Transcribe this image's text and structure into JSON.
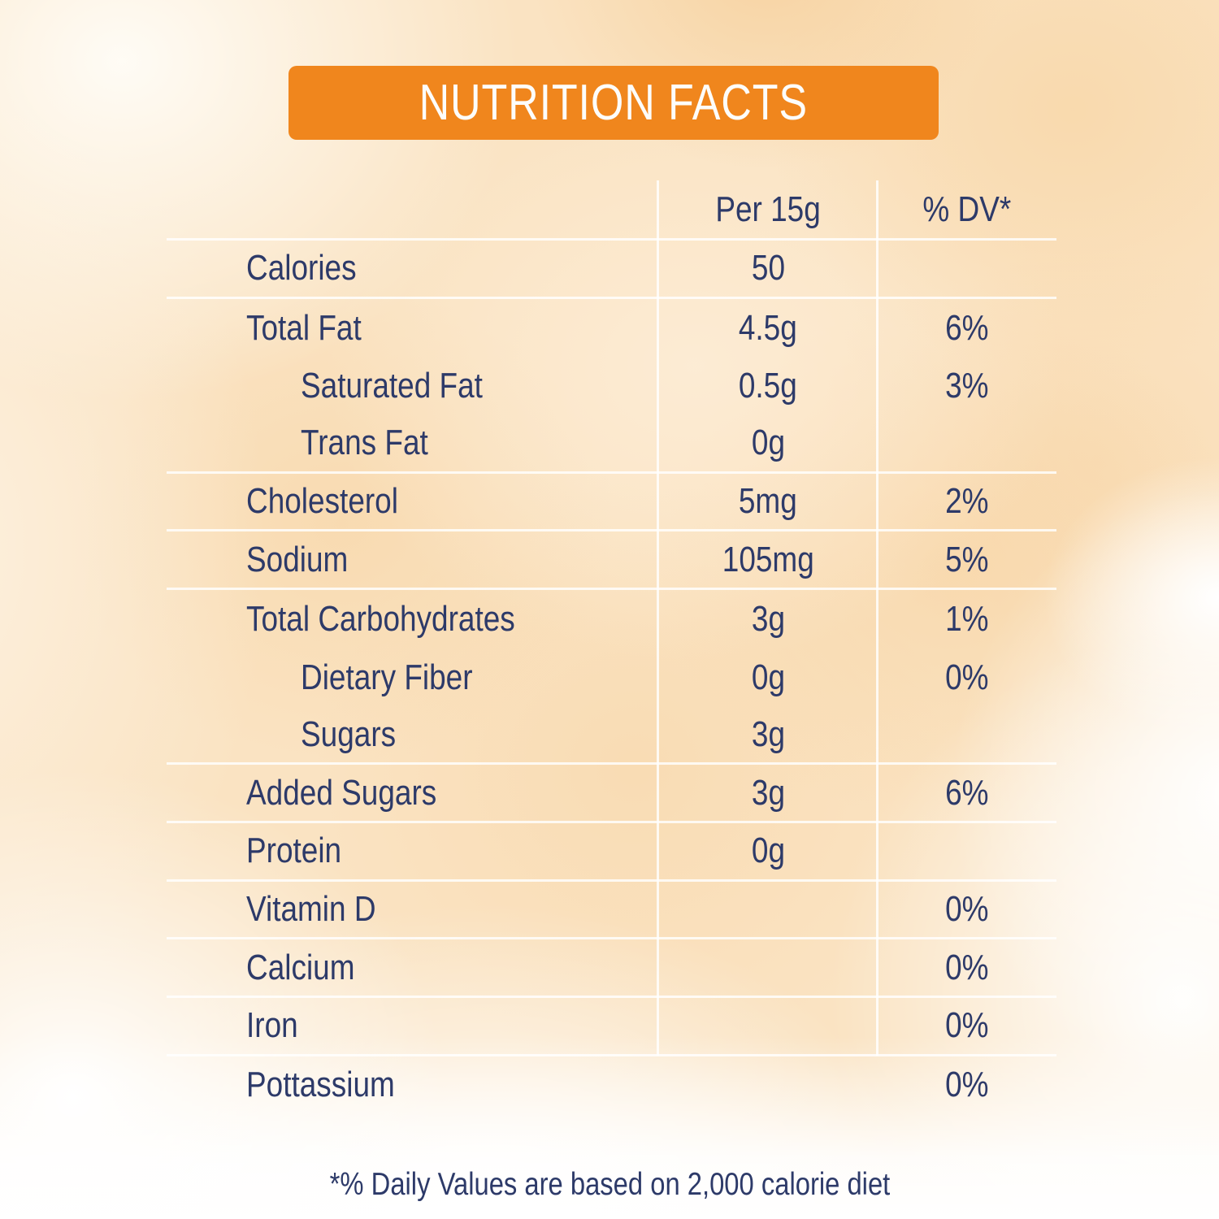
{
  "title": "NUTRITION FACTS",
  "columns": {
    "amount": "Per 15g",
    "dv": "% DV*"
  },
  "rows": [
    {
      "label": "Calories",
      "amount": "50",
      "dv": "",
      "indent": false,
      "divider": true
    },
    {
      "label": "Total Fat",
      "amount": "4.5g",
      "dv": "6%",
      "indent": false,
      "divider": false
    },
    {
      "label": "Saturated Fat",
      "amount": "0.5g",
      "dv": "3%",
      "indent": true,
      "divider": false
    },
    {
      "label": "Trans Fat",
      "amount": "0g",
      "dv": "",
      "indent": true,
      "divider": true
    },
    {
      "label": "Cholesterol",
      "amount": "5mg",
      "dv": "2%",
      "indent": false,
      "divider": true
    },
    {
      "label": "Sodium",
      "amount": "105mg",
      "dv": "5%",
      "indent": false,
      "divider": true
    },
    {
      "label": "Total Carbohydrates",
      "amount": "3g",
      "dv": "1%",
      "indent": false,
      "divider": false
    },
    {
      "label": "Dietary Fiber",
      "amount": "0g",
      "dv": "0%",
      "indent": true,
      "divider": false
    },
    {
      "label": "Sugars",
      "amount": "3g",
      "dv": "",
      "indent": true,
      "divider": true
    },
    {
      "label": "Added Sugars",
      "amount": "3g",
      "dv": "6%",
      "indent": false,
      "divider": true
    },
    {
      "label": "Protein",
      "amount": "0g",
      "dv": "",
      "indent": false,
      "divider": true
    },
    {
      "label": "Vitamin D",
      "amount": "",
      "dv": "0%",
      "indent": false,
      "divider": true
    },
    {
      "label": "Calcium",
      "amount": "",
      "dv": "0%",
      "indent": false,
      "divider": true
    },
    {
      "label": "Iron",
      "amount": "",
      "dv": "0%",
      "indent": false,
      "divider": true
    },
    {
      "label": "Pottassium",
      "amount": "",
      "dv": "0%",
      "indent": false,
      "divider": false
    }
  ],
  "footnote": "*% Daily Values are based on 2,000 calorie diet",
  "colors": {
    "banner_orange": "#F0861D",
    "text_navy": "#2D3A69",
    "divider_white": "#FFFFFF",
    "background_peach": "#FAE3C2"
  }
}
